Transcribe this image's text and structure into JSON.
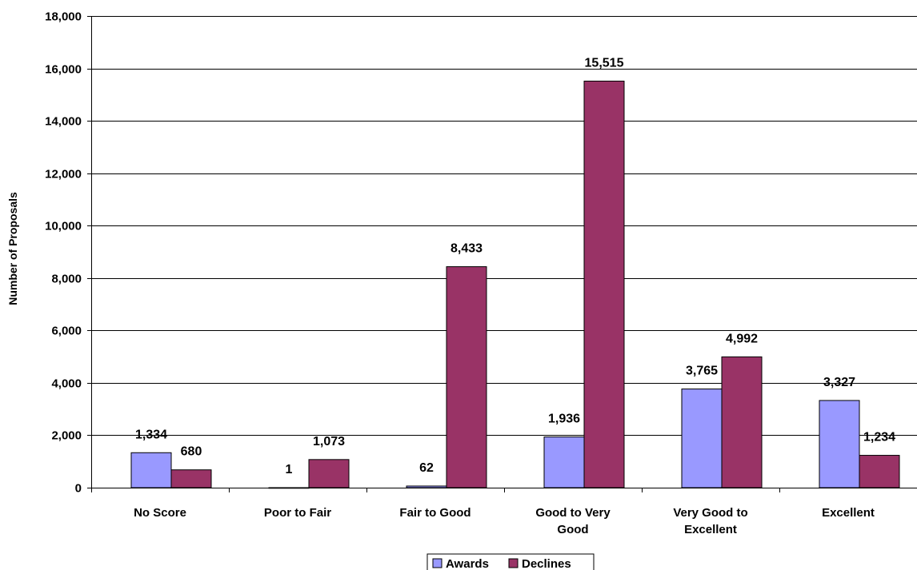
{
  "chart_data": {
    "type": "bar",
    "title": "",
    "xlabel": "",
    "ylabel": "Number of Proposals",
    "ylim": [
      0,
      18000
    ],
    "yticks": [
      0,
      2000,
      4000,
      6000,
      8000,
      10000,
      12000,
      14000,
      16000,
      18000
    ],
    "ytick_labels": [
      "0",
      "2,000",
      "4,000",
      "6,000",
      "8,000",
      "10,000",
      "12,000",
      "14,000",
      "16,000",
      "18,000"
    ],
    "categories": [
      [
        "No Score"
      ],
      [
        "Poor to Fair"
      ],
      [
        "Fair to Good"
      ],
      [
        "Good to Very",
        "Good"
      ],
      [
        "Very Good to",
        "Excellent"
      ],
      [
        "Excellent"
      ]
    ],
    "series": [
      {
        "name": "Awards",
        "color": "#9999ff",
        "values": [
          1334,
          1,
          62,
          1936,
          3765,
          3327
        ],
        "labels": [
          "1,334",
          "1",
          "62",
          "1,936",
          "3,765",
          "3,327"
        ]
      },
      {
        "name": "Declines",
        "color": "#993366",
        "values": [
          680,
          1073,
          8433,
          15515,
          4992,
          1234
        ],
        "labels": [
          "680",
          "1,073",
          "8,433",
          "15,515",
          "4,992",
          "1,234"
        ]
      }
    ],
    "grid": true,
    "legend": "bottom"
  }
}
